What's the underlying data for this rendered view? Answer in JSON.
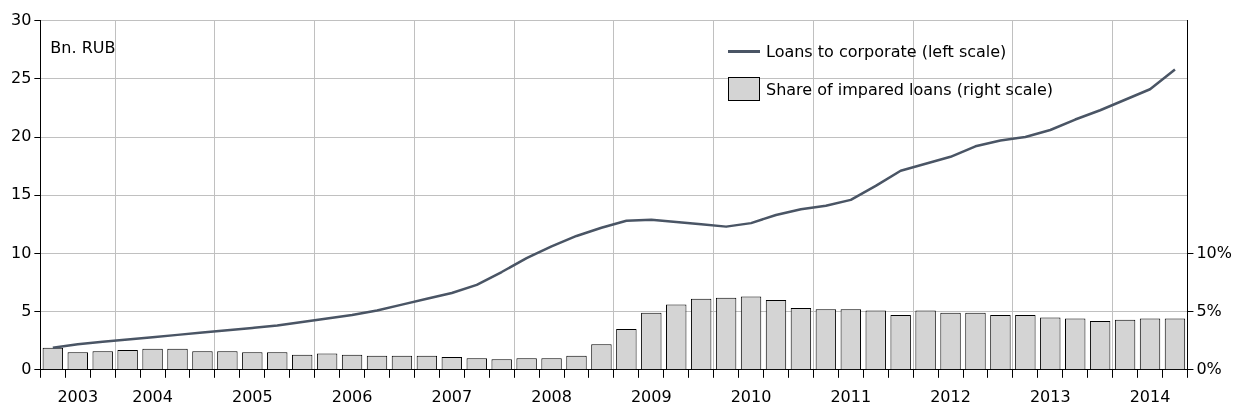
{
  "chart_data": {
    "type": "bar",
    "categories": [
      null,
      "2003",
      null,
      null,
      "2004",
      null,
      null,
      null,
      "2005",
      null,
      null,
      null,
      "2006",
      null,
      null,
      null,
      "2007",
      null,
      null,
      null,
      "2008",
      null,
      null,
      null,
      "2009",
      null,
      null,
      null,
      "2010",
      null,
      null,
      null,
      "2011",
      null,
      null,
      null,
      "2012",
      null,
      null,
      null,
      "2013",
      null,
      null,
      null,
      "2014",
      null
    ],
    "series": [
      {
        "name": "Loans to corporate  (left scale)",
        "type": "line",
        "color": "#4a5565",
        "values": [
          1.9,
          2.2,
          2.4,
          2.6,
          2.8,
          3.0,
          3.2,
          3.4,
          3.6,
          3.8,
          4.1,
          4.4,
          4.7,
          5.1,
          5.6,
          6.1,
          6.6,
          7.3,
          8.4,
          9.6,
          10.6,
          11.5,
          12.2,
          12.8,
          12.9,
          12.7,
          12.5,
          12.3,
          12.6,
          13.3,
          13.8,
          14.1,
          14.6,
          15.8,
          17.1,
          17.7,
          18.3,
          19.2,
          19.7,
          20.0,
          20.6,
          21.5,
          22.3,
          23.2,
          24.1,
          25.8
        ]
      },
      {
        "name": "Share of impared loans (right scale)",
        "axis": "y2",
        "color": "#d4d4d4",
        "values": [
          1.9,
          1.5,
          1.6,
          1.7,
          1.8,
          1.8,
          1.6,
          1.6,
          1.5,
          1.5,
          1.3,
          1.4,
          1.3,
          1.2,
          1.2,
          1.2,
          1.1,
          1.0,
          0.9,
          1.0,
          1.0,
          1.2,
          2.2,
          3.5,
          4.9,
          5.6,
          6.1,
          6.2,
          6.3,
          6.0,
          5.3,
          5.2,
          5.2,
          5.1,
          4.7,
          5.1,
          4.9,
          4.9,
          4.7,
          4.7,
          4.5,
          4.4,
          4.2,
          4.3,
          4.4,
          4.4
        ]
      }
    ],
    "ylim": [
      0,
      30
    ],
    "yticks": [
      0,
      5,
      10,
      15,
      20,
      25,
      30
    ],
    "y2lim": [
      0,
      30
    ],
    "y2ticks": [
      {
        "value": 0,
        "label": "0%"
      },
      {
        "value": 5,
        "label": "5%"
      },
      {
        "value": 10,
        "label": "10%"
      }
    ],
    "annotations": [
      "Bn. RUB"
    ],
    "grid": true,
    "legend": "top right"
  }
}
